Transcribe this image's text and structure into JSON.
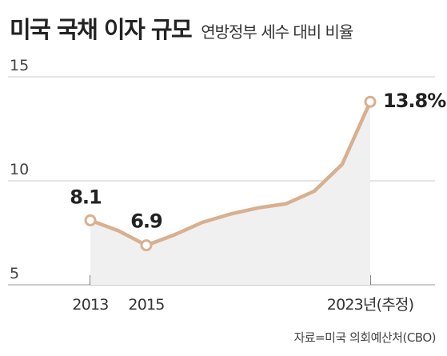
{
  "title": "미국 국채 이자 규모",
  "subtitle": "연방정부 세수 대비 비율",
  "source": "자료=미국 의회예산처(CBO)",
  "colors": {
    "line": "#d8b08f",
    "area": "#f0f0f0",
    "grid": "#c8c8c8",
    "axis": "#bbbbbb",
    "text": "#222222"
  },
  "chart_data": {
    "type": "area",
    "title": "미국 국채 이자 규모",
    "subtitle": "연방정부 세수 대비 비율",
    "x": [
      2013,
      2014,
      2015,
      2016,
      2017,
      2018,
      2019,
      2020,
      2021,
      2022,
      2023
    ],
    "values": [
      8.1,
      7.6,
      6.9,
      7.4,
      8.0,
      8.4,
      8.7,
      8.9,
      9.5,
      10.8,
      13.8
    ],
    "ylim": [
      5,
      15
    ],
    "yticks": [
      5,
      10,
      15
    ],
    "xtick_labels": [
      {
        "x": 2013,
        "label": "2013"
      },
      {
        "x": 2015,
        "label": "2015"
      },
      {
        "x": 2023,
        "label": "2023년(추정)"
      }
    ],
    "labeled_points": [
      {
        "x": 2013,
        "y": 8.1,
        "label": "8.1"
      },
      {
        "x": 2015,
        "y": 6.9,
        "label": "6.9"
      },
      {
        "x": 2023,
        "y": 13.8,
        "label": "13.8%"
      }
    ],
    "grid": true,
    "legend": "none"
  }
}
